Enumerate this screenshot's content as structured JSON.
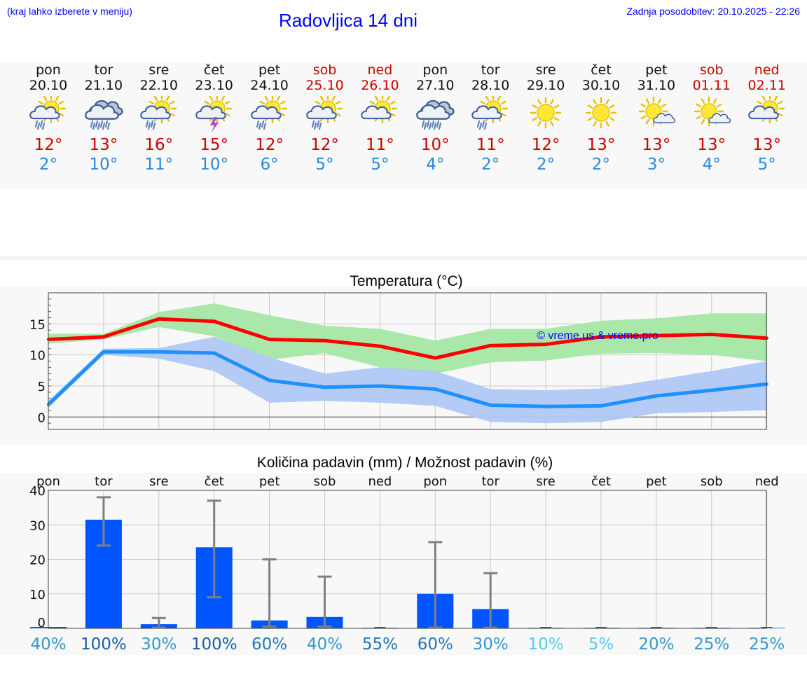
{
  "header": {
    "hint": "(kraj lahko izberete v meniju)",
    "title": "Radovljica 14 dni",
    "updated": "Zadnja posodobitev: 20.10.2025 - 22:26"
  },
  "days": [
    {
      "name": "pon",
      "date": "20.10",
      "weekend": false,
      "icon": "sun-cloud-rain-icon",
      "max": "12°",
      "min": "2°"
    },
    {
      "name": "tor",
      "date": "21.10",
      "weekend": false,
      "icon": "cloud-heavy-rain-icon",
      "max": "13°",
      "min": "10°"
    },
    {
      "name": "sre",
      "date": "22.10",
      "weekend": false,
      "icon": "sun-cloud-rain-icon",
      "max": "16°",
      "min": "11°"
    },
    {
      "name": "čet",
      "date": "23.10",
      "weekend": false,
      "icon": "sun-cloud-thunder-icon",
      "max": "15°",
      "min": "10°"
    },
    {
      "name": "pet",
      "date": "24.10",
      "weekend": false,
      "icon": "sun-cloud-rain-icon",
      "max": "12°",
      "min": "6°"
    },
    {
      "name": "sob",
      "date": "25.10",
      "weekend": true,
      "icon": "sun-cloud-rain-icon",
      "max": "12°",
      "min": "5°"
    },
    {
      "name": "ned",
      "date": "26.10",
      "weekend": true,
      "icon": "sun-cloud-icon",
      "max": "11°",
      "min": "5°"
    },
    {
      "name": "pon",
      "date": "27.10",
      "weekend": false,
      "icon": "cloud-heavy-rain-icon",
      "max": "10°",
      "min": "4°"
    },
    {
      "name": "tor",
      "date": "28.10",
      "weekend": false,
      "icon": "sun-cloud-rain-icon",
      "max": "11°",
      "min": "2°"
    },
    {
      "name": "sre",
      "date": "29.10",
      "weekend": false,
      "icon": "sun-icon",
      "max": "12°",
      "min": "2°"
    },
    {
      "name": "čet",
      "date": "30.10",
      "weekend": false,
      "icon": "sun-icon",
      "max": "13°",
      "min": "2°"
    },
    {
      "name": "pet",
      "date": "31.10",
      "weekend": false,
      "icon": "sun-small-cloud-icon",
      "max": "13°",
      "min": "3°"
    },
    {
      "name": "sob",
      "date": "01.11",
      "weekend": true,
      "icon": "sun-small-cloud-icon",
      "max": "13°",
      "min": "4°"
    },
    {
      "name": "ned",
      "date": "02.11",
      "weekend": true,
      "icon": "sun-cloud-icon",
      "max": "13°",
      "min": "5°"
    }
  ],
  "colors": {
    "max_line": "#ff0000",
    "min_line": "#1e90ff",
    "max_band": "#aae8aa",
    "min_band": "#b0c8f4",
    "bar": "#0055ff",
    "error": "#808080",
    "title": "#0000ff",
    "weekend": "#cc0000"
  },
  "chart_data": [
    {
      "type": "line",
      "title": "Temperatura (°C)",
      "watermark": "© vreme.us & vreme.pro",
      "x": [
        0,
        1,
        2,
        3,
        4,
        5,
        6,
        7,
        8,
        9,
        10,
        11,
        12,
        13
      ],
      "ylim": [
        -2,
        20
      ],
      "yticks": [
        0,
        5,
        10,
        15
      ],
      "grid": true,
      "series": [
        {
          "name": "",
          "values": [
            12.5,
            12.9,
            15.8,
            15.4,
            12.5,
            12.3,
            11.4,
            9.5,
            11.5,
            11.7,
            12.9,
            13.1,
            13.3,
            12.7
          ],
          "band_low": [
            11.8,
            12.5,
            14.5,
            13.0,
            9.2,
            10.3,
            8.0,
            7.0,
            8.8,
            9.1,
            10.2,
            10.3,
            10.0,
            9.0
          ],
          "band_high": [
            13.4,
            13.4,
            16.9,
            18.3,
            16.4,
            14.7,
            14.2,
            12.3,
            14.2,
            14.2,
            15.5,
            15.9,
            16.7,
            16.7
          ]
        },
        {
          "name": "",
          "values": [
            2.0,
            10.5,
            10.5,
            10.3,
            5.9,
            4.8,
            5.0,
            4.5,
            1.9,
            1.7,
            1.8,
            3.4,
            4.3,
            5.3
          ],
          "band_low": [
            1.5,
            10.0,
            9.4,
            7.4,
            2.3,
            2.6,
            2.3,
            1.8,
            -0.8,
            -1.0,
            -0.8,
            0.6,
            0.8,
            1.1
          ],
          "band_high": [
            2.6,
            11.0,
            11.1,
            12.9,
            9.6,
            7.0,
            8.0,
            7.4,
            4.5,
            4.3,
            4.6,
            6.0,
            7.4,
            9.0
          ]
        }
      ]
    },
    {
      "type": "bar",
      "title": "Količina padavin (mm) / Možnost padavin (%)",
      "categories": [
        "pon",
        "tor",
        "sre",
        "čet",
        "pet",
        "sob",
        "ned",
        "pon",
        "tor",
        "sre",
        "čet",
        "pet",
        "sob",
        "ned"
      ],
      "values": [
        0.4,
        31.5,
        1.2,
        23.5,
        2.3,
        3.3,
        0.1,
        10.0,
        5.6,
        0.1,
        0.1,
        0.1,
        0.1,
        0.1
      ],
      "error_low": [
        0.4,
        24.0,
        0.2,
        9.0,
        0.5,
        0.5,
        0.1,
        0.2,
        0.2,
        0.1,
        0.1,
        0.1,
        0.1,
        0.1
      ],
      "error_high": [
        0.4,
        38.0,
        3.0,
        37.0,
        20.0,
        15.0,
        0.1,
        25.0,
        16.0,
        0.1,
        0.1,
        0.1,
        0.1,
        0.1
      ],
      "probability": [
        "40%",
        "100%",
        "30%",
        "100%",
        "60%",
        "40%",
        "55%",
        "60%",
        "30%",
        "10%",
        "5%",
        "20%",
        "25%",
        "25%"
      ],
      "prob_colors": [
        "#3399cc",
        "#1a5fa8",
        "#3399cc",
        "#1a5fa8",
        "#2277bb",
        "#3399cc",
        "#2277bb",
        "#2277bb",
        "#3399cc",
        "#55ccee",
        "#55ccee",
        "#3399cc",
        "#3399cc",
        "#3399cc"
      ],
      "ylim": [
        0,
        40
      ],
      "yticks": [
        0,
        10,
        20,
        30,
        40
      ],
      "grid": true
    }
  ]
}
